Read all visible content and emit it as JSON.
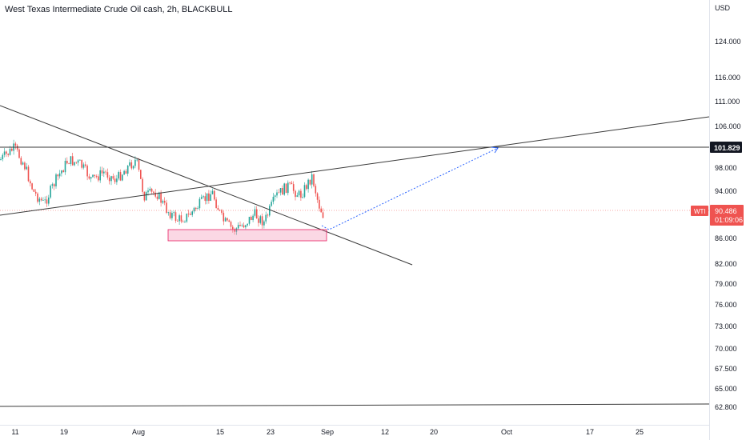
{
  "header": {
    "title": "West Texas Intermediate Crude Oil cash, 2h, BLACKBULL"
  },
  "chart_data": {
    "type": "candlestick",
    "currency_label": "USD",
    "y_ticks": [
      "124.000",
      "116.000",
      "111.000",
      "106.000",
      "98.000",
      "94.000",
      "86.000",
      "82.000",
      "79.000",
      "76.000",
      "73.000",
      "70.000",
      "67.500",
      "65.000",
      "62.800"
    ],
    "x_ticks": [
      "11",
      "19",
      "Aug",
      "15",
      "23",
      "Sep",
      "12",
      "20",
      "Oct",
      "17",
      "25"
    ],
    "last_price": {
      "symbol": "WTI",
      "price": "90.486",
      "countdown": "01:09:06",
      "value": 90.486
    },
    "resistance_label": {
      "price": "101.829",
      "value": 101.829
    },
    "colors": {
      "up": "#26a69a",
      "down": "#ef5350",
      "projection": "#2962ff",
      "zone": "#f48fb1",
      "lines": "#131722"
    }
  }
}
